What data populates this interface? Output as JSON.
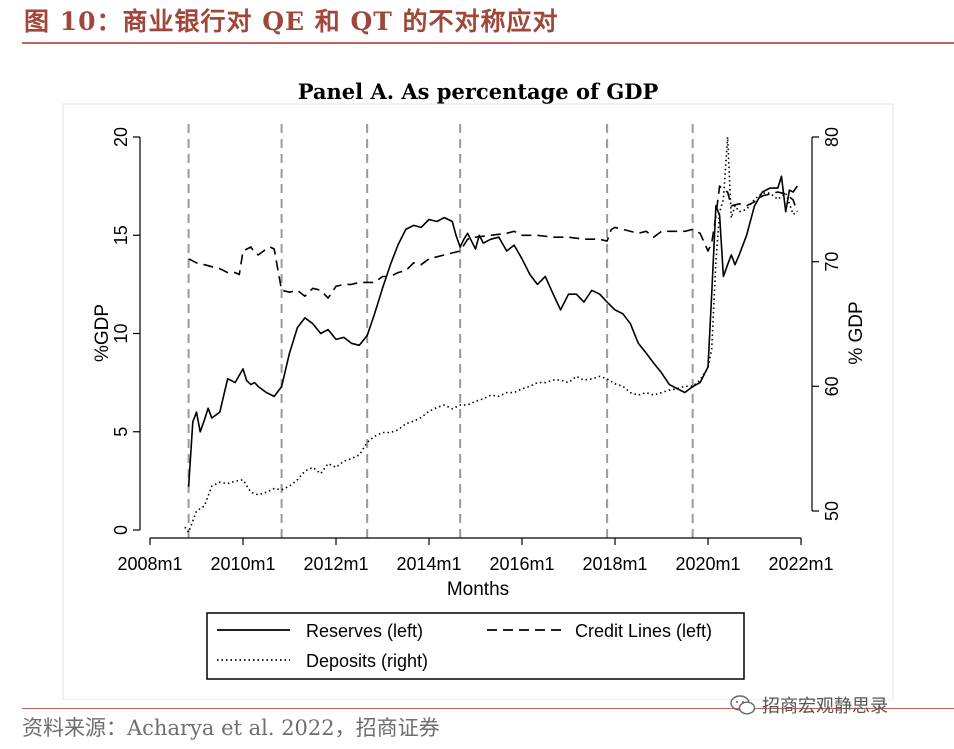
{
  "figure": {
    "title": "图 10：商业银行对 QE 和 QT 的不对称应对",
    "source": "资料来源：Acharya et al. 2022，招商证券",
    "watermark": "招商宏观静思录"
  },
  "colors": {
    "title": "#a0473a",
    "rule": "#c0655a",
    "series": "#000000",
    "vline": "#9a9a9a"
  },
  "chart_data": {
    "type": "line",
    "title": "Panel A. As percentage of GDP",
    "xlabel": "Months",
    "ylabel_left": "%GDP",
    "ylabel_right": "% GDP",
    "xlim": [
      2008.0,
      2022.15
    ],
    "ylim_left": [
      0,
      20
    ],
    "ylim_right": [
      48,
      80
    ],
    "x_ticks": [
      2008,
      2010,
      2012,
      2014,
      2016,
      2018,
      2020,
      2022
    ],
    "x_tick_labels": [
      "2008m1",
      "2010m1",
      "2012m1",
      "2014m1",
      "2016m1",
      "2018m1",
      "2020m1",
      "2022m1"
    ],
    "y_left_ticks": [
      0,
      5,
      10,
      15,
      20
    ],
    "y_left_tick_labels": [
      "0",
      "5",
      "10",
      "15",
      "20"
    ],
    "y_right_ticks": [
      50,
      60,
      70,
      80
    ],
    "y_right_tick_labels": [
      "50",
      "60",
      "70",
      "80"
    ],
    "vertical_lines": [
      2008.83,
      2010.83,
      2012.67,
      2014.67,
      2017.83,
      2019.67
    ],
    "legend": [
      {
        "label": "Reserves (left)",
        "style": "solid"
      },
      {
        "label": "Credit Lines (left)",
        "style": "dashed"
      },
      {
        "label": "Deposits (right)",
        "style": "dotted"
      }
    ],
    "series": [
      {
        "name": "Reserves (left)",
        "axis": "left",
        "style": "solid",
        "x": [
          2008.83,
          2008.92,
          2009.0,
          2009.08,
          2009.17,
          2009.25,
          2009.33,
          2009.5,
          2009.67,
          2009.83,
          2010.0,
          2010.08,
          2010.17,
          2010.25,
          2010.33,
          2010.5,
          2010.67,
          2010.83,
          2011.0,
          2011.17,
          2011.33,
          2011.5,
          2011.67,
          2011.83,
          2012.0,
          2012.17,
          2012.33,
          2012.5,
          2012.67,
          2012.83,
          2013.0,
          2013.17,
          2013.33,
          2013.5,
          2013.67,
          2013.83,
          2014.0,
          2014.17,
          2014.33,
          2014.5,
          2014.58,
          2014.67,
          2014.75,
          2014.83,
          2015.0,
          2015.08,
          2015.17,
          2015.33,
          2015.5,
          2015.67,
          2015.83,
          2016.0,
          2016.17,
          2016.33,
          2016.5,
          2016.67,
          2016.83,
          2017.0,
          2017.17,
          2017.33,
          2017.5,
          2017.67,
          2017.83,
          2018.0,
          2018.17,
          2018.33,
          2018.5,
          2018.67,
          2018.83,
          2019.0,
          2019.17,
          2019.33,
          2019.5,
          2019.67,
          2019.83,
          2020.0,
          2020.08,
          2020.17,
          2020.25,
          2020.33,
          2020.42,
          2020.5,
          2020.58,
          2020.67,
          2020.83,
          2021.0,
          2021.17,
          2021.33,
          2021.5,
          2021.58,
          2021.67,
          2021.75,
          2021.83,
          2021.92
        ],
        "y": [
          2.2,
          5.5,
          6.0,
          5.0,
          5.6,
          6.2,
          5.7,
          6.0,
          7.7,
          7.5,
          8.2,
          7.6,
          7.4,
          7.5,
          7.3,
          7.0,
          6.8,
          7.3,
          9.0,
          10.3,
          10.8,
          10.5,
          10.0,
          10.2,
          9.7,
          9.8,
          9.5,
          9.4,
          9.9,
          11.0,
          12.3,
          13.5,
          14.5,
          15.3,
          15.5,
          15.4,
          15.8,
          15.7,
          15.9,
          15.7,
          15.0,
          14.4,
          14.8,
          15.1,
          14.3,
          15.0,
          14.6,
          14.8,
          14.9,
          14.2,
          14.5,
          13.8,
          13.0,
          12.5,
          12.9,
          12.0,
          11.2,
          12.0,
          12.0,
          11.6,
          12.2,
          12.0,
          11.6,
          11.2,
          11.0,
          10.5,
          9.5,
          9.0,
          8.5,
          8.0,
          7.4,
          7.2,
          7.0,
          7.3,
          7.5,
          8.3,
          12.0,
          16.5,
          16.0,
          12.9,
          13.5,
          14.0,
          13.5,
          14.0,
          15.0,
          16.5,
          17.2,
          17.4,
          17.4,
          18.0,
          16.2,
          17.3,
          17.2,
          17.5
        ]
      },
      {
        "name": "Credit Lines (left)",
        "axis": "left",
        "style": "dashed",
        "x": [
          2008.83,
          2009.0,
          2009.17,
          2009.33,
          2009.5,
          2009.67,
          2009.83,
          2009.92,
          2010.0,
          2010.17,
          2010.25,
          2010.33,
          2010.5,
          2010.58,
          2010.67,
          2010.83,
          2011.0,
          2011.17,
          2011.33,
          2011.5,
          2011.67,
          2011.83,
          2012.0,
          2012.17,
          2012.33,
          2012.5,
          2012.67,
          2012.83,
          2013.0,
          2013.17,
          2013.33,
          2013.5,
          2013.67,
          2013.83,
          2014.0,
          2014.33,
          2014.67,
          2014.83,
          2015.0,
          2015.33,
          2015.67,
          2015.83,
          2016.0,
          2016.33,
          2016.67,
          2017.0,
          2017.33,
          2017.67,
          2017.83,
          2017.92,
          2018.0,
          2018.5,
          2018.67,
          2018.83,
          2019.0,
          2019.25,
          2019.5,
          2019.67,
          2019.83,
          2020.0,
          2020.08,
          2020.17,
          2020.25,
          2020.33,
          2020.42,
          2020.5,
          2020.67,
          2020.83,
          2021.0,
          2021.17,
          2021.33,
          2021.5,
          2021.67,
          2021.83,
          2021.92
        ],
        "y": [
          13.8,
          13.6,
          13.5,
          13.4,
          13.3,
          13.1,
          13.1,
          13.0,
          14.2,
          14.4,
          14.1,
          14.0,
          14.3,
          14.4,
          14.3,
          12.2,
          12.1,
          12.2,
          11.9,
          12.3,
          12.2,
          11.8,
          12.4,
          12.5,
          12.5,
          12.6,
          12.6,
          12.6,
          12.9,
          12.9,
          13.1,
          13.2,
          13.6,
          13.5,
          13.8,
          14.0,
          14.2,
          14.8,
          14.9,
          15.0,
          15.1,
          15.2,
          15.0,
          15.0,
          14.9,
          14.9,
          14.8,
          14.8,
          14.7,
          15.3,
          15.4,
          15.1,
          15.2,
          14.9,
          15.2,
          15.2,
          15.2,
          15.3,
          15.1,
          14.2,
          14.6,
          16.0,
          17.5,
          17.3,
          17.2,
          16.5,
          16.6,
          16.5,
          16.7,
          17.0,
          17.1,
          17.2,
          17.1,
          16.8,
          16.2
        ]
      },
      {
        "name": "Deposits (right)",
        "axis": "right",
        "style": "dotted",
        "x": [
          2008.75,
          2008.83,
          2009.0,
          2009.17,
          2009.33,
          2009.5,
          2009.67,
          2009.83,
          2010.0,
          2010.17,
          2010.33,
          2010.5,
          2010.67,
          2010.83,
          2011.0,
          2011.17,
          2011.33,
          2011.5,
          2011.67,
          2011.83,
          2012.0,
          2012.17,
          2012.33,
          2012.5,
          2012.67,
          2012.83,
          2013.0,
          2013.17,
          2013.33,
          2013.5,
          2013.67,
          2013.83,
          2014.0,
          2014.17,
          2014.33,
          2014.5,
          2014.67,
          2014.83,
          2015.0,
          2015.17,
          2015.33,
          2015.5,
          2015.67,
          2015.83,
          2016.0,
          2016.17,
          2016.33,
          2016.5,
          2016.67,
          2016.83,
          2017.0,
          2017.17,
          2017.33,
          2017.5,
          2017.67,
          2017.83,
          2018.0,
          2018.17,
          2018.33,
          2018.5,
          2018.67,
          2018.83,
          2019.0,
          2019.17,
          2019.33,
          2019.5,
          2019.67,
          2019.83,
          2020.0,
          2020.08,
          2020.17,
          2020.25,
          2020.33,
          2020.42,
          2020.5,
          2020.58,
          2020.67,
          2020.83,
          2021.0,
          2021.17,
          2021.33,
          2021.5,
          2021.67,
          2021.83,
          2021.92
        ],
        "y": [
          48.7,
          48.3,
          50.0,
          50.4,
          52.0,
          52.3,
          52.2,
          52.4,
          52.5,
          51.5,
          51.3,
          51.5,
          51.8,
          51.7,
          52.0,
          52.5,
          53.2,
          53.5,
          53.0,
          53.8,
          53.5,
          54.0,
          54.2,
          54.5,
          55.5,
          56.0,
          56.3,
          56.3,
          56.5,
          57.0,
          57.2,
          57.5,
          58.0,
          58.3,
          58.5,
          58.2,
          58.5,
          58.5,
          58.8,
          59.0,
          59.3,
          59.2,
          59.5,
          59.5,
          59.8,
          60.0,
          60.3,
          60.3,
          60.5,
          60.5,
          60.3,
          60.8,
          60.5,
          60.6,
          60.8,
          60.6,
          60.2,
          60.0,
          59.5,
          59.3,
          59.5,
          59.3,
          59.5,
          59.7,
          59.8,
          60.0,
          60.0,
          60.5,
          61.5,
          63.0,
          70.0,
          74.0,
          75.0,
          80.0,
          73.5,
          74.5,
          74.0,
          74.2,
          75.0,
          75.5,
          75.5,
          75.0,
          75.5,
          73.8,
          74.0
        ]
      }
    ]
  }
}
